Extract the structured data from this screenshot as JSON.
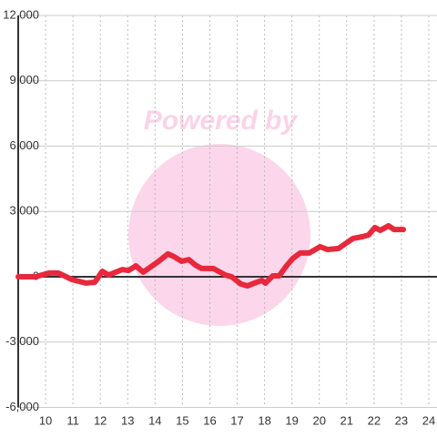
{
  "chart_data": {
    "type": "line",
    "watermark": "Powered by",
    "x": [
      9.0,
      9.63,
      10.13,
      10.47,
      10.97,
      11.47,
      11.8,
      12.07,
      12.3,
      12.8,
      13.03,
      13.3,
      13.57,
      14.13,
      14.47,
      14.7,
      14.97,
      15.23,
      15.47,
      15.7,
      16.13,
      16.57,
      16.8,
      17.13,
      17.37,
      17.63,
      17.9,
      18.03,
      18.3,
      18.53,
      18.8,
      19.03,
      19.3,
      19.63,
      20.03,
      20.3,
      20.7,
      21.23,
      21.57,
      21.8,
      22.03,
      22.23,
      22.53,
      22.73,
      23.07
    ],
    "series": [
      {
        "color": "#e8283c",
        "values": [
          0,
          0,
          170,
          170,
          -130,
          -290,
          -250,
          250,
          80,
          330,
          290,
          500,
          210,
          710,
          1050,
          920,
          710,
          790,
          540,
          380,
          380,
          80,
          0,
          -330,
          -420,
          -290,
          -170,
          -290,
          40,
          40,
          500,
          840,
          1090,
          1090,
          1380,
          1250,
          1300,
          1760,
          1840,
          1920,
          2260,
          2130,
          2340,
          2170,
          2170
        ]
      }
    ],
    "xlim": [
      9,
      24.3
    ],
    "xticks": [
      10,
      11,
      12,
      13,
      14,
      15,
      16,
      17,
      18,
      19,
      20,
      21,
      22,
      23,
      24
    ],
    "ylim": [
      -6000,
      12000
    ],
    "yticks": [
      {
        "value": -6000,
        "label": "-6,000"
      },
      {
        "value": -3000,
        "label": "-3,000"
      },
      0,
      {
        "value": 3000,
        "label": "3,000"
      },
      {
        "value": 6000,
        "label": "6,000"
      },
      {
        "value": 9000,
        "label": "9,000"
      },
      {
        "value": 12000,
        "label": "12,000"
      }
    ],
    "grid": true
  }
}
